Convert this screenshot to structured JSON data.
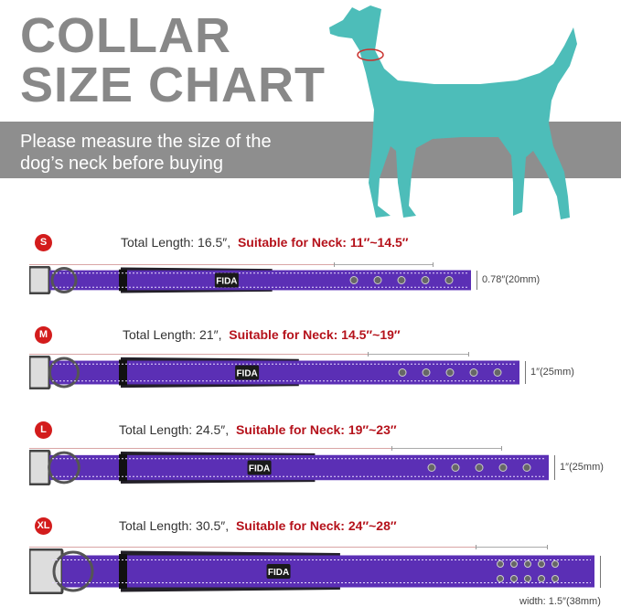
{
  "header": {
    "title_line1": "COLLAR",
    "title_line2": "SIZE CHART",
    "subtitle_line1": "Please measure the size of the",
    "subtitle_line2": "dog’s neck before buying"
  },
  "colors": {
    "title": "#888888",
    "band": "#8e8e8e",
    "dog": "#4dbdb9",
    "collar": "#5b2fb5",
    "accent": "#b5121b"
  },
  "brand": "FIDA",
  "sizes": [
    {
      "badge": "S",
      "total": "Total Length: 16.5″,",
      "neck": "Suitable for Neck: 11″~14.5″",
      "width": "0.78″(20mm)"
    },
    {
      "badge": "M",
      "total": "Total Length: 21″,",
      "neck": "Suitable for Neck: 14.5″~19″",
      "width": "1″(25mm)"
    },
    {
      "badge": "L",
      "total": "Total Length: 24.5″,",
      "neck": "Suitable for Neck: 19″~23″",
      "width": "1″(25mm)"
    },
    {
      "badge": "XL",
      "total": "Total Length: 30.5″,",
      "neck": "Suitable for Neck: 24″~28″",
      "width": "width: 1.5″(38mm)"
    }
  ]
}
